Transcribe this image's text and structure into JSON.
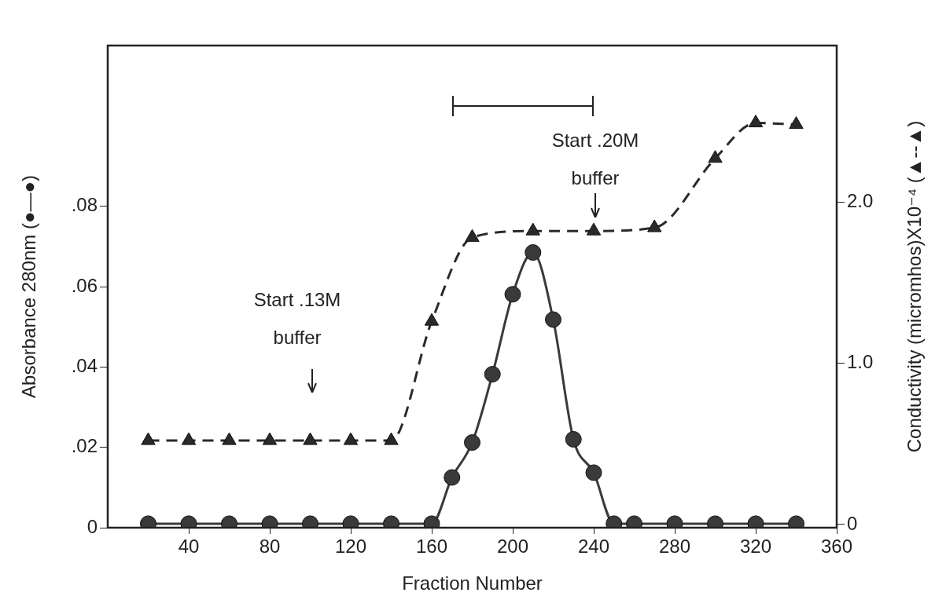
{
  "chart_data": {
    "type": "line",
    "xlabel": "Fraction Number",
    "ylabel": "Absorbance 280nm (●—●)",
    "y2label": "Conductivity (micromhos)X10⁻⁴ (▲--▲)",
    "xlim": [
      0,
      360
    ],
    "xticks": [
      40,
      80,
      120,
      160,
      200,
      240,
      280,
      320,
      360
    ],
    "ylim": [
      0,
      0.12
    ],
    "yticks": [
      0,
      {
        "value": 0.02,
        "label": ".02"
      },
      {
        "value": 0.04,
        "label": ".04"
      },
      {
        "value": 0.06,
        "label": ".06"
      },
      {
        "value": 0.08,
        "label": ".08"
      }
    ],
    "y2lim": [
      -0.02,
      2.97
    ],
    "y2ticks": [
      0,
      {
        "value": 1,
        "label": "1.0"
      },
      {
        "value": 2,
        "label": "2.0"
      }
    ],
    "grid": false,
    "legend": false,
    "series": [
      {
        "color": "#3a3a3a",
        "marker": "circle",
        "line_style": "solid",
        "x": [
          20,
          40,
          60,
          80,
          100,
          120,
          140,
          160,
          170,
          180,
          190,
          200,
          210,
          220,
          230,
          240,
          250,
          260,
          280,
          300,
          320,
          340
        ],
        "values": [
          0.001,
          0.001,
          0.001,
          0.001,
          0.001,
          0.001,
          0.001,
          0.001,
          0.0125,
          0.0212,
          0.0382,
          0.0581,
          0.0685,
          0.0518,
          0.022,
          0.0137,
          0.001,
          0.001,
          0.001,
          0.001,
          0.001,
          0.001
        ]
      },
      {
        "color": "#2a2a2a",
        "marker": "triangle",
        "line_style": "dashed",
        "axis": "y2",
        "x": [
          20,
          40,
          60,
          80,
          100,
          120,
          140,
          160,
          180,
          210,
          240,
          270,
          300,
          320,
          340
        ],
        "values": [
          0.52,
          0.52,
          0.52,
          0.52,
          0.52,
          0.52,
          0.52,
          1.26,
          1.78,
          1.82,
          1.82,
          1.84,
          2.27,
          2.49,
          2.48
        ]
      }
    ],
    "annotations": [
      "Start .13M buffer",
      "Start .20M buffer"
    ]
  }
}
